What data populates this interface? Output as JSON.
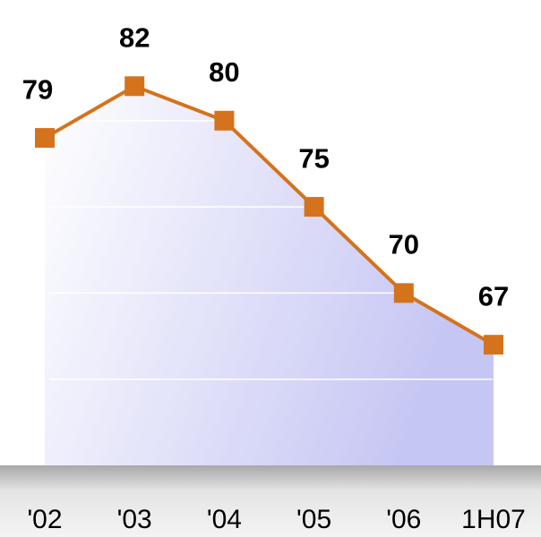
{
  "chart_data": {
    "type": "line",
    "categories": [
      "'02",
      "'03",
      "'04",
      "'05",
      "'06",
      "1H07"
    ],
    "series": [
      {
        "values": [
          79,
          82,
          80,
          75,
          70,
          67
        ],
        "color": "#d4731c"
      }
    ],
    "ylim": [
      60,
      87
    ],
    "yticks": [
      65,
      70,
      75,
      80
    ],
    "grid": true
  }
}
